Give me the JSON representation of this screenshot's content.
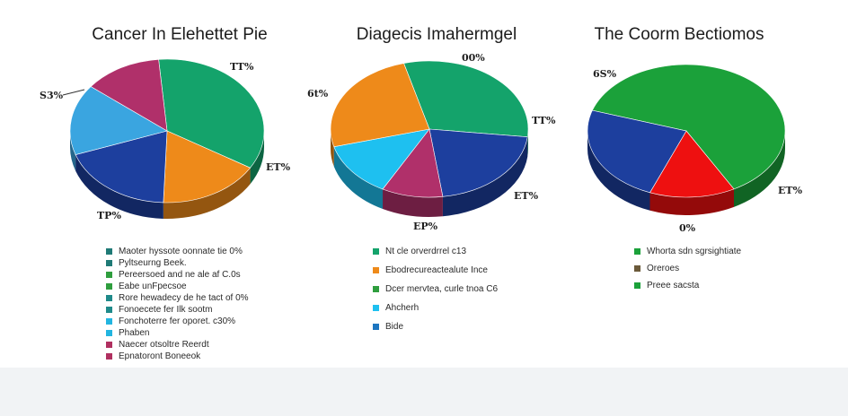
{
  "chart_data": [
    {
      "type": "pie",
      "title": "Cancer In Elehettet Pie",
      "slices": [
        {
          "value": 35,
          "color": "#14a36b",
          "label": "S3%"
        },
        {
          "value": 17,
          "color": "#ee8a1a",
          "label": "TT%"
        },
        {
          "value": 19,
          "color": "#1d3f9e",
          "label": "ET%"
        },
        {
          "value": 16,
          "color": "#3aa5e0",
          "label": ""
        },
        {
          "value": 13,
          "color": "#b0306a",
          "label": "TP%"
        }
      ],
      "legend": [
        {
          "color": "#1f7a76",
          "text": "Maoter hyssote oonnate tie 0%"
        },
        {
          "color": "#1f7a76",
          "text": "Pyltseurng Beek."
        },
        {
          "color": "#2f9e3e",
          "text": "Pereersoed and ne ale af C.0s"
        },
        {
          "color": "#2f9e3e",
          "text": "Eabe unFpecsoe"
        },
        {
          "color": "#1f8a8a",
          "text": "Rore hewadecy de he tact of 0%"
        },
        {
          "color": "#1f8a8a",
          "text": "Fonoecete fer Ilk sootm"
        },
        {
          "color": "#22b5e0",
          "text": "Fonchoterre fer oporet. c30%"
        },
        {
          "color": "#22b5e0",
          "text": "Phaben"
        },
        {
          "color": "#b03060",
          "text": "Naecer otsoltre Reerdt"
        },
        {
          "color": "#b03060",
          "text": "Epnatoront Boneeok"
        }
      ]
    },
    {
      "type": "pie",
      "title": "Diagecis Imahermgel",
      "slices": [
        {
          "value": 31,
          "color": "#14a36b",
          "label": "6t%"
        },
        {
          "value": 21,
          "color": "#1d3f9e",
          "label": "00%"
        },
        {
          "value": 10,
          "color": "#b0306a",
          "label": "TT%"
        },
        {
          "value": 13,
          "color": "#1ec0f0",
          "label": "ET%"
        },
        {
          "value": 25,
          "color": "#ee8a1a",
          "label": "EP%"
        }
      ],
      "legend": [
        {
          "color": "#14a36b",
          "text": "Nt cle orverdrrel c13"
        },
        {
          "color": "#ee8a1a",
          "text": "Ebodrecureactealute Ince"
        },
        {
          "color": "#2f9e3e",
          "text": "Dcer mervtea, curle tnoa C6"
        },
        {
          "color": "#1ec0f0",
          "text": "Ahcherh"
        },
        {
          "color": "#1d76c0",
          "text": "Bide"
        }
      ]
    },
    {
      "type": "pie",
      "title": "The Coorm Bectiomos",
      "slices": [
        {
          "value": 62,
          "color": "#1ba13a",
          "label": "6S%"
        },
        {
          "value": 14,
          "color": "#ee1010",
          "label": "ET%"
        },
        {
          "value": 24,
          "color": "#1d3f9e",
          "label": "0%"
        }
      ],
      "legend": [
        {
          "color": "#1ba13a",
          "text": "Whorta sdn sgrsightiate"
        },
        {
          "color": "#6b5a3a",
          "text": "Oreroes"
        },
        {
          "color": "#1ba13a",
          "text": "Preee sacsta"
        }
      ]
    }
  ]
}
